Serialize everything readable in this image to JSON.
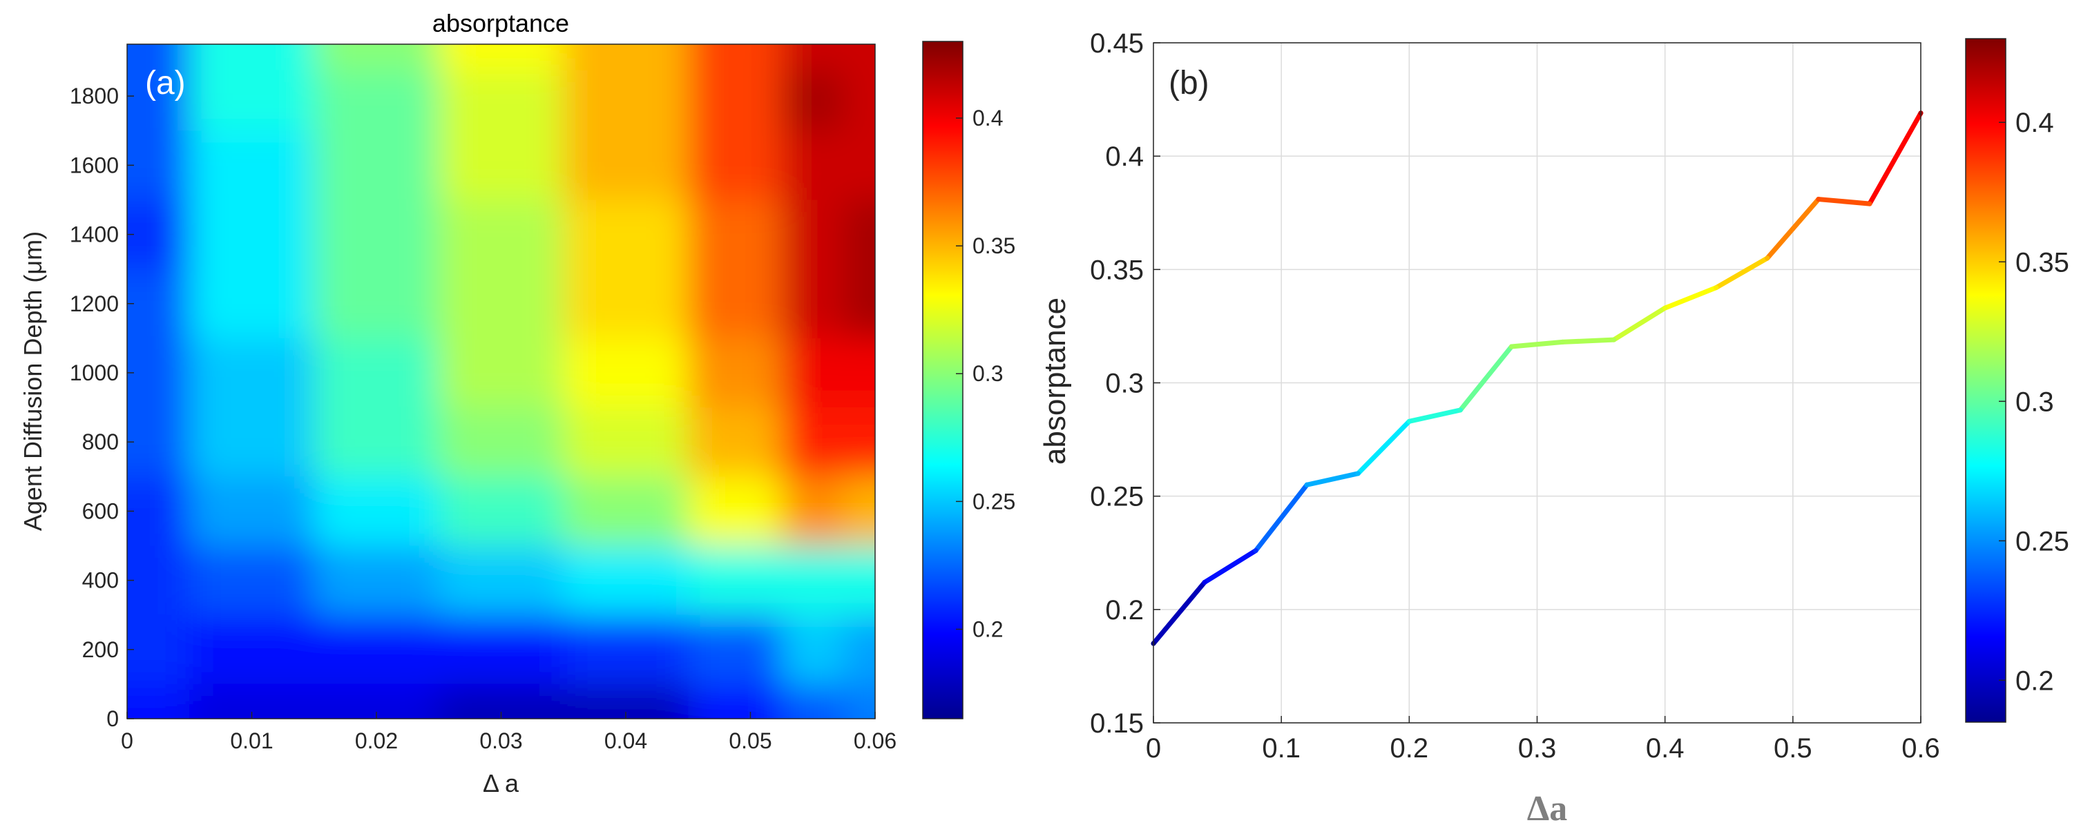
{
  "chart_data": [
    {
      "type": "heatmap",
      "panel_label": "(a)",
      "title": "absorptance",
      "xlabel": "Δ a",
      "ylabel": "Agent Diffusion Depth (μm)",
      "xlim": [
        0,
        0.06
      ],
      "ylim": [
        0,
        1950
      ],
      "x_ticks": [
        "0",
        "0.01",
        "0.02",
        "0.03",
        "0.04",
        "0.05",
        "0.06"
      ],
      "x_tick_values": [
        0,
        0.01,
        0.02,
        0.03,
        0.04,
        0.05,
        0.06
      ],
      "y_ticks": [
        "0",
        "200",
        "400",
        "600",
        "800",
        "1000",
        "1200",
        "1400",
        "1600",
        "1800"
      ],
      "y_tick_values": [
        0,
        200,
        400,
        600,
        800,
        1000,
        1200,
        1400,
        1600,
        1800
      ],
      "colorbar": {
        "colormap": "jet",
        "range": [
          0.165,
          0.43
        ],
        "ticks": [
          "0.2",
          "0.25",
          "0.3",
          "0.35",
          "0.4"
        ],
        "tick_values": [
          0.2,
          0.25,
          0.3,
          0.35,
          0.4
        ]
      },
      "x": [
        0,
        0.01,
        0.02,
        0.03,
        0.04,
        0.05,
        0.055,
        0.06
      ],
      "y": [
        0,
        200,
        400,
        600,
        800,
        1000,
        1200,
        1400,
        1600,
        1800,
        1950
      ],
      "z": [
        [
          0.2,
          0.19,
          0.19,
          0.18,
          0.18,
          0.2,
          0.22,
          0.23
        ],
        [
          0.21,
          0.2,
          0.2,
          0.2,
          0.21,
          0.22,
          0.25,
          0.24
        ],
        [
          0.21,
          0.22,
          0.24,
          0.25,
          0.26,
          0.27,
          0.27,
          0.27
        ],
        [
          0.21,
          0.24,
          0.26,
          0.28,
          0.3,
          0.33,
          0.36,
          0.35
        ],
        [
          0.22,
          0.25,
          0.28,
          0.3,
          0.32,
          0.35,
          0.39,
          0.39
        ],
        [
          0.22,
          0.25,
          0.28,
          0.31,
          0.33,
          0.36,
          0.4,
          0.4
        ],
        [
          0.22,
          0.26,
          0.29,
          0.31,
          0.34,
          0.37,
          0.41,
          0.42
        ],
        [
          0.21,
          0.26,
          0.29,
          0.31,
          0.34,
          0.37,
          0.41,
          0.42
        ],
        [
          0.22,
          0.26,
          0.29,
          0.32,
          0.35,
          0.38,
          0.41,
          0.41
        ],
        [
          0.22,
          0.27,
          0.29,
          0.32,
          0.35,
          0.38,
          0.42,
          0.41
        ],
        [
          0.22,
          0.27,
          0.3,
          0.33,
          0.35,
          0.38,
          0.41,
          0.41
        ]
      ]
    },
    {
      "type": "line",
      "panel_label": "(b)",
      "xlabel": "Δa",
      "ylabel": "absorptance",
      "xlim": [
        0,
        0.6
      ],
      "ylim": [
        0.15,
        0.45
      ],
      "grid": true,
      "x_ticks": [
        "0",
        "0.1",
        "0.2",
        "0.3",
        "0.4",
        "0.5",
        "0.6"
      ],
      "x_tick_values": [
        0,
        0.1,
        0.2,
        0.3,
        0.4,
        0.5,
        0.6
      ],
      "y_ticks": [
        "0.15",
        "0.2",
        "0.25",
        "0.3",
        "0.35",
        "0.4",
        "0.45"
      ],
      "y_tick_values": [
        0.15,
        0.2,
        0.25,
        0.3,
        0.35,
        0.4,
        0.45
      ],
      "colorbar": {
        "colormap": "jet",
        "range": [
          0.185,
          0.43
        ],
        "ticks": [
          "0.2",
          "0.25",
          "0.3",
          "0.35",
          "0.4"
        ],
        "tick_values": [
          0.2,
          0.25,
          0.3,
          0.35,
          0.4
        ]
      },
      "series": [
        {
          "name": "absorptance",
          "x": [
            0,
            0.04,
            0.08,
            0.12,
            0.16,
            0.2,
            0.24,
            0.28,
            0.32,
            0.36,
            0.4,
            0.44,
            0.48,
            0.52,
            0.56,
            0.6
          ],
          "values": [
            0.185,
            0.212,
            0.226,
            0.255,
            0.26,
            0.283,
            0.288,
            0.316,
            0.318,
            0.319,
            0.333,
            0.342,
            0.355,
            0.381,
            0.379,
            0.419
          ]
        }
      ]
    }
  ]
}
